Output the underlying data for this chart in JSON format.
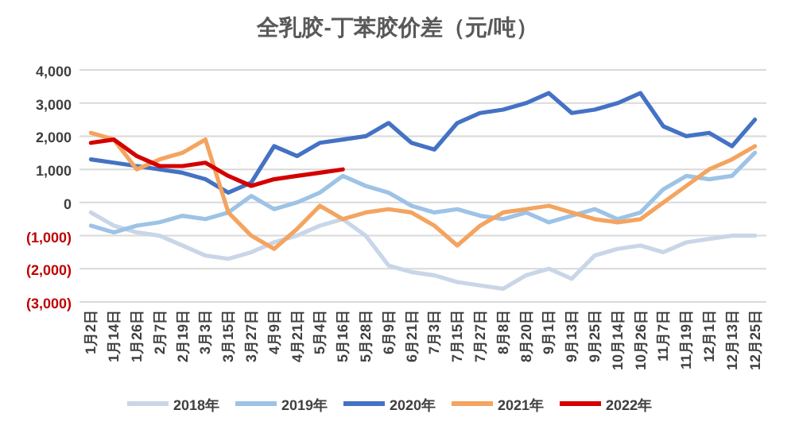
{
  "chart_data": {
    "type": "line",
    "title": "全乳胶-丁苯胶价差（元/吨）",
    "categories": [
      "1月2日",
      "1月14日",
      "1月26日",
      "2月7日",
      "2月19日",
      "3月3日",
      "3月15日",
      "3月27日",
      "4月9日",
      "4月21日",
      "5月4日",
      "5月16日",
      "5月28日",
      "6月9日",
      "6月21日",
      "7月3日",
      "7月15日",
      "7月27日",
      "8月8日",
      "8月20日",
      "9月1日",
      "9月13日",
      "9月25日",
      "10月14日",
      "10月26日",
      "11月7日",
      "11月19日",
      "12月1日",
      "12月13日",
      "12月25日"
    ],
    "series": [
      {
        "name": "2018年",
        "color": "#c9d6e8",
        "values": [
          -300,
          -700,
          -900,
          -1000,
          -1300,
          -1600,
          -1700,
          -1500,
          -1200,
          -1000,
          -700,
          -500,
          -1000,
          -1900,
          -2100,
          -2200,
          -2400,
          -2500,
          -2600,
          -2200,
          -2000,
          -2300,
          -1600,
          -1400,
          -1300,
          -1500,
          -1200,
          -1100,
          -1000,
          -1000
        ]
      },
      {
        "name": "2019年",
        "color": "#9dc3e6",
        "values": [
          -700,
          -900,
          -700,
          -600,
          -400,
          -500,
          -300,
          200,
          -200,
          0,
          300,
          800,
          500,
          300,
          -100,
          -300,
          -200,
          -400,
          -500,
          -300,
          -600,
          -400,
          -200,
          -500,
          -300,
          400,
          800,
          700,
          800,
          1500
        ]
      },
      {
        "name": "2020年",
        "color": "#4472c4",
        "values": [
          1300,
          1200,
          1100,
          1000,
          900,
          700,
          300,
          600,
          1700,
          1400,
          1800,
          1900,
          2000,
          2400,
          1800,
          1600,
          2400,
          2700,
          2800,
          3000,
          3300,
          2700,
          2800,
          3000,
          3300,
          2300,
          2000,
          2100,
          1700,
          2500
        ]
      },
      {
        "name": "2021年",
        "color": "#f4a460",
        "values": [
          2100,
          1900,
          1000,
          1300,
          1500,
          1900,
          -300,
          -1000,
          -1400,
          -800,
          -100,
          -500,
          -300,
          -200,
          -300,
          -700,
          -1300,
          -700,
          -300,
          -200,
          -100,
          -300,
          -500,
          -600,
          -500,
          0,
          500,
          1000,
          1300,
          1700
        ]
      },
      {
        "name": "2022年",
        "color": "#d40000",
        "values": [
          1800,
          1900,
          1400,
          1100,
          1100,
          1200,
          800,
          500,
          700,
          800,
          900,
          1000,
          null,
          null,
          null,
          null,
          null,
          null,
          null,
          null,
          null,
          null,
          null,
          null,
          null,
          null,
          null,
          null,
          null,
          null
        ]
      }
    ],
    "ylim": [
      -3000,
      4000
    ],
    "yticks": [
      {
        "value": -3000,
        "label": "(3,000)"
      },
      {
        "value": -2000,
        "label": "(2,000)"
      },
      {
        "value": -1000,
        "label": "(1,000)"
      },
      {
        "value": 0,
        "label": "0"
      },
      {
        "value": 1000,
        "label": "1,000"
      },
      {
        "value": 2000,
        "label": "2,000"
      },
      {
        "value": 3000,
        "label": "3,000"
      },
      {
        "value": 4000,
        "label": "4,000"
      }
    ],
    "grid": "y",
    "legend": "bottom"
  }
}
